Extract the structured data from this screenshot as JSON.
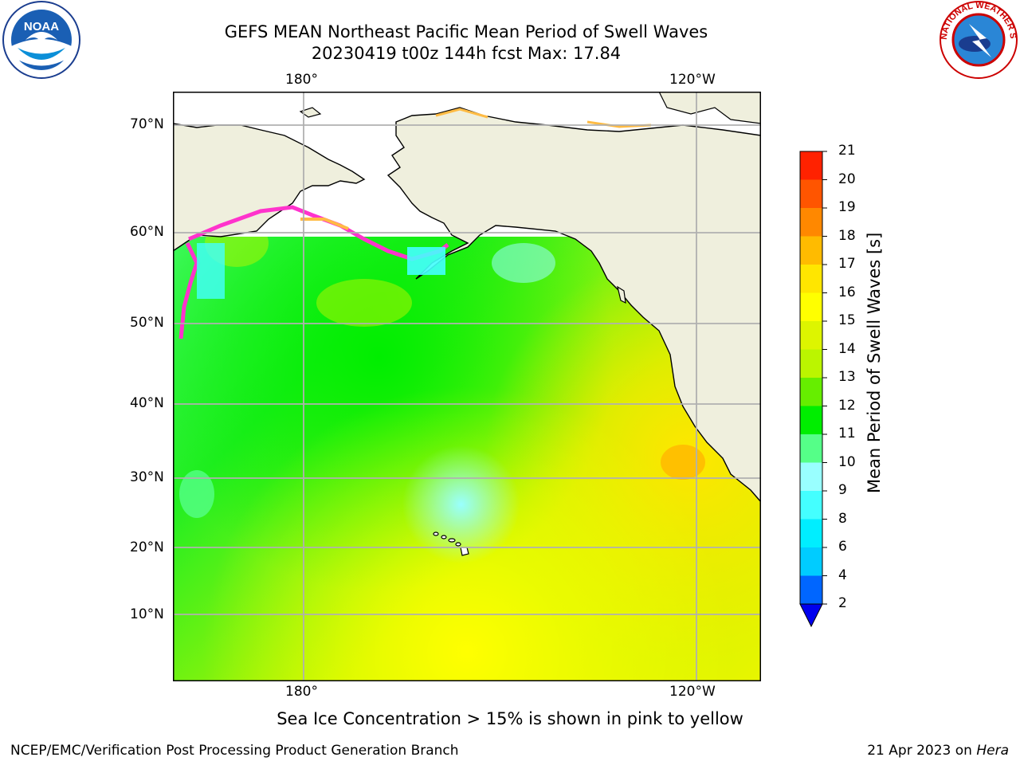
{
  "title": {
    "line1": "GEFS MEAN Northeast Pacific Mean Period of Swell Waves",
    "line2": "20230419 t00z 144h fcst   Max: 17.84"
  },
  "map": {
    "lon_labels_top": [
      "180°",
      "120°W"
    ],
    "lon_labels_bottom": [
      "180°",
      "120°W"
    ],
    "lat_labels": [
      "70°N",
      "60°N",
      "50°N",
      "40°N",
      "30°N",
      "20°N",
      "10°N"
    ],
    "land_color": "#efefdd",
    "grid_color": "#b0b0b0"
  },
  "colorbar": {
    "title": "Mean Period of Swell Waves [s]",
    "levels": [
      "2",
      "4",
      "6",
      "8",
      "9",
      "10",
      "11",
      "12",
      "13",
      "14",
      "15",
      "16",
      "17",
      "18",
      "19",
      "20",
      "21"
    ],
    "colors": [
      "#0066ff",
      "#00ccff",
      "#00eeff",
      "#44ffff",
      "#99ffff",
      "#55ff88",
      "#00ee00",
      "#66ee00",
      "#bbf500",
      "#ddf500",
      "#ffff00",
      "#ffe600",
      "#ffbb00",
      "#ff8800",
      "#ff5500",
      "#ff2200"
    ],
    "under_color": "#0000ee"
  },
  "ice_note": "Sea Ice Concentration > 15% is shown in pink to yellow",
  "footer": {
    "left": "NCEP/EMC/Verification Post Processing Product Generation Branch",
    "right_date": "21 Apr 2023 on ",
    "right_machine": "Hera"
  },
  "logos": {
    "noaa_text": "NOAA",
    "nws_ring": "NATIONAL WEATHER SERVICE"
  }
}
